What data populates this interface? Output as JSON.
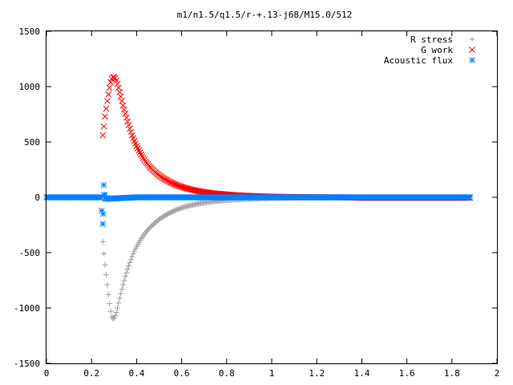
{
  "chart_data": {
    "type": "scatter",
    "title": "m1/n1.5/q1.5/r-+.13-j68/M15.0/512",
    "xlabel": "",
    "ylabel": "",
    "xlim": [
      0,
      2
    ],
    "ylim": [
      -1500,
      1500
    ],
    "xticks": [
      "0",
      "0.2",
      "0.4",
      "0.6",
      "0.8",
      "1",
      "1.2",
      "1.4",
      "1.6",
      "1.8",
      "2"
    ],
    "yticks": [
      "1500",
      "1000",
      "500",
      "0",
      "-500",
      "-1000",
      "-1500"
    ],
    "grid": false,
    "legend_position": "top-right",
    "series": [
      {
        "name": "R stress",
        "marker": "+",
        "color": "#a0a0a0",
        "x": [
          0.25,
          0.255,
          0.26,
          0.265,
          0.27,
          0.275,
          0.28,
          0.285,
          0.29,
          0.295,
          0.3,
          0.305,
          0.31,
          0.315,
          0.32,
          0.33,
          0.34,
          0.35,
          0.36,
          0.37,
          0.38,
          0.39,
          0.4,
          0.42,
          0.44,
          0.46,
          0.48,
          0.5,
          0.52,
          0.55,
          0.58,
          0.61,
          0.64,
          0.67,
          0.7,
          0.74,
          0.78,
          0.82,
          0.86,
          0.9,
          0.95,
          1.0,
          1.1,
          1.2,
          1.3,
          1.4,
          1.5,
          1.6,
          1.7,
          1.8,
          1.88
        ],
        "y": [
          -400,
          -510,
          -610,
          -700,
          -790,
          -880,
          -960,
          -1030,
          -1080,
          -1095,
          -1090,
          -1070,
          -1040,
          -1000,
          -955,
          -870,
          -790,
          -715,
          -650,
          -590,
          -535,
          -487,
          -445,
          -375,
          -318,
          -272,
          -233,
          -200,
          -172,
          -138,
          -110,
          -89,
          -72,
          -59,
          -48,
          -37,
          -29,
          -23,
          -18,
          -14,
          -10,
          -7,
          -4,
          -2,
          -1,
          0,
          0,
          0,
          0,
          0,
          0
        ]
      },
      {
        "name": "G work",
        "marker": "x",
        "color": "#ff0000",
        "x": [
          0.25,
          0.255,
          0.26,
          0.265,
          0.27,
          0.275,
          0.28,
          0.285,
          0.29,
          0.295,
          0.3,
          0.305,
          0.31,
          0.315,
          0.32,
          0.33,
          0.34,
          0.35,
          0.36,
          0.37,
          0.38,
          0.39,
          0.4,
          0.42,
          0.44,
          0.46,
          0.48,
          0.5,
          0.52,
          0.55,
          0.58,
          0.61,
          0.64,
          0.67,
          0.7,
          0.74,
          0.78,
          0.82,
          0.86,
          0.9,
          0.95,
          1.0,
          1.1,
          1.2,
          1.3,
          1.4,
          1.5,
          1.6,
          1.7,
          1.8,
          1.88
        ],
        "y": [
          560,
          640,
          730,
          800,
          870,
          930,
          990,
          1040,
          1070,
          1085,
          1085,
          1075,
          1055,
          1025,
          990,
          910,
          830,
          755,
          685,
          620,
          560,
          508,
          462,
          385,
          322,
          272,
          232,
          198,
          170,
          136,
          109,
          88,
          71,
          58,
          47,
          37,
          29,
          22,
          17,
          13,
          9,
          6,
          3,
          1,
          0,
          -5,
          -5,
          -5,
          -5,
          -5,
          -5
        ]
      },
      {
        "name": "Acoustic flux",
        "marker": "*",
        "color": "#0080ff",
        "x": [
          0.0,
          0.05,
          0.1,
          0.15,
          0.2,
          0.24,
          0.25,
          0.252,
          0.254,
          0.256,
          0.258,
          0.26,
          0.27,
          0.28,
          0.3,
          0.35,
          0.4,
          0.5,
          0.6,
          0.7,
          0.8,
          0.9,
          1.0,
          1.1,
          1.2,
          1.3,
          1.4,
          1.5,
          1.6,
          1.7,
          1.8,
          1.88
        ],
        "y": [
          0,
          0,
          0,
          0,
          0,
          0,
          -240,
          -150,
          110,
          25,
          20,
          -10,
          -15,
          -10,
          -10,
          -5,
          0,
          0,
          0,
          0,
          0,
          0,
          0,
          0,
          0,
          0,
          0,
          0,
          0,
          0,
          0,
          0
        ]
      }
    ]
  }
}
